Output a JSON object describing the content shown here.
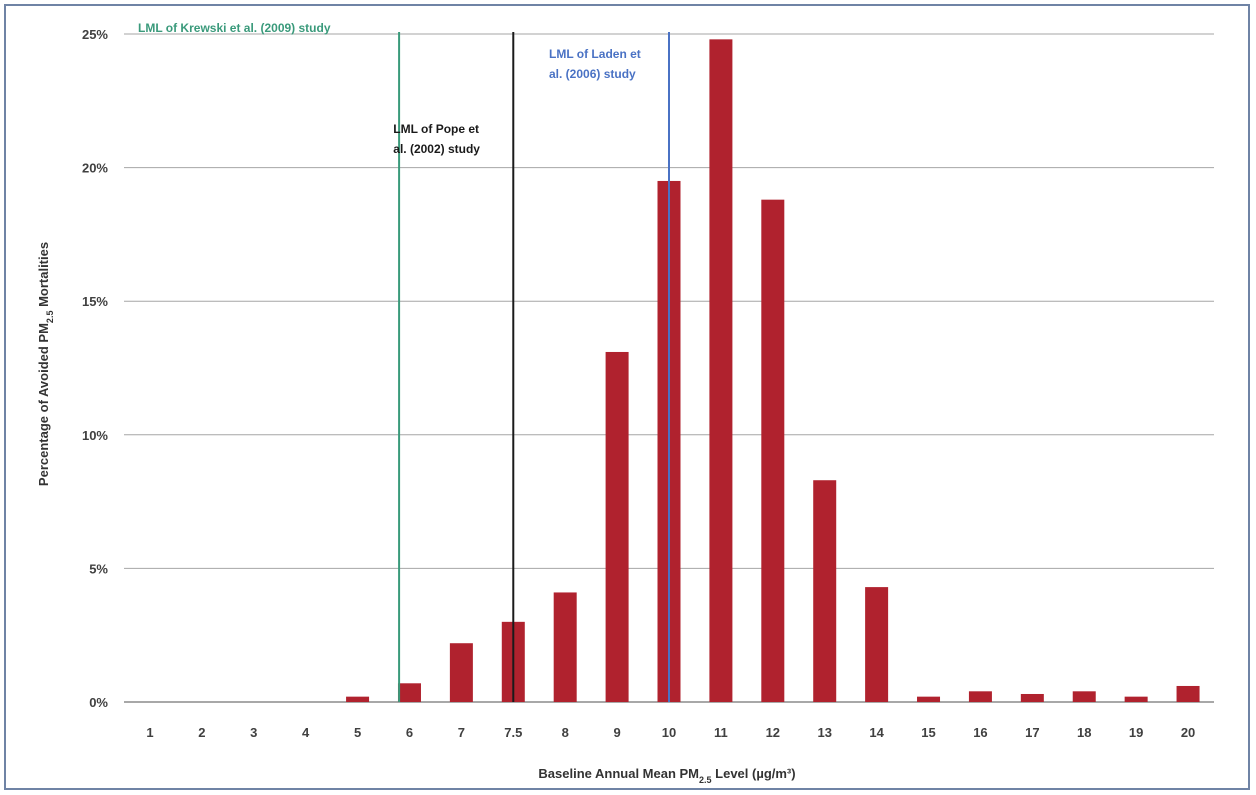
{
  "colors": {
    "bar": "#b0222e",
    "grid": "#a6a6a6",
    "krewski": "#3a9a7b",
    "pope": "#1a1a1a",
    "laden": "#4a72c4"
  },
  "chart_data": {
    "type": "bar",
    "categories": [
      "1",
      "2",
      "3",
      "4",
      "5",
      "6",
      "7",
      "7.5",
      "8",
      "9",
      "10",
      "11",
      "12",
      "13",
      "14",
      "15",
      "16",
      "17",
      "18",
      "19",
      "20"
    ],
    "values": [
      0.0,
      0.0,
      0.0,
      0.0,
      0.2,
      0.7,
      2.2,
      3.0,
      4.1,
      13.1,
      19.5,
      24.8,
      18.8,
      8.3,
      4.3,
      0.2,
      0.4,
      0.3,
      0.4,
      0.2,
      0.6
    ],
    "ylim": [
      0,
      25
    ],
    "ytick_values": [
      0,
      5,
      10,
      15,
      20,
      25
    ],
    "ytick_labels": [
      "0%",
      "5%",
      "10%",
      "15%",
      "20%",
      "25%"
    ],
    "xlabel": {
      "pre": "Baseline Annual Mean PM",
      "sub": "2.5",
      "post": " Level (µg/m³)"
    },
    "ylabel": {
      "pre": "Percentage of Avoided PM",
      "sub": "2.5",
      "post": " Mortalities"
    },
    "grid": true,
    "reference_lines": [
      {
        "id": "krewski",
        "x": 5.8,
        "label_lines": [
          "LML of Krewski et al. (2009) study"
        ]
      },
      {
        "id": "pope",
        "x": 7.5,
        "label_lines": [
          "LML of Pope et",
          "al. (2002) study"
        ]
      },
      {
        "id": "laden",
        "x": 10.0,
        "label_lines": [
          "LML of Laden et",
          "al. (2006) study"
        ]
      }
    ]
  }
}
